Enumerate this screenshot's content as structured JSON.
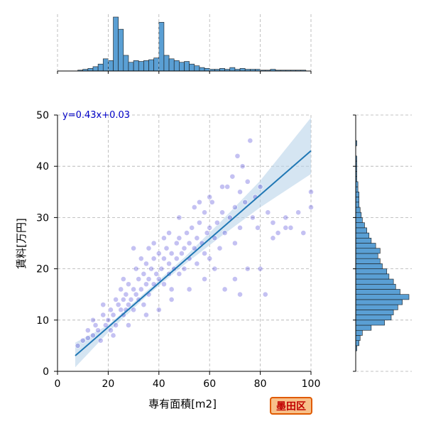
{
  "chart_data": {
    "type": "scatter",
    "xlabel": "専有面積[m2]",
    "ylabel": "賃料[万円]",
    "xlim": [
      0,
      100
    ],
    "ylim": [
      0,
      50
    ],
    "x_ticks": [
      "0",
      "20",
      "40",
      "60",
      "80",
      "100"
    ],
    "y_ticks": [
      "0",
      "10",
      "20",
      "30",
      "40",
      "50"
    ],
    "grid": true,
    "regression": {
      "label": "y=0.43x+0.03",
      "slope": 0.43,
      "intercept": 0.03,
      "x_range": [
        7,
        100
      ]
    },
    "confidence_band": [
      [
        7,
        0.8,
        5.6
      ],
      [
        20,
        7.6,
        9.0
      ],
      [
        35,
        14.6,
        15.6
      ],
      [
        50,
        20.8,
        22.2
      ],
      [
        65,
        26.5,
        29.5
      ],
      [
        80,
        32.0,
        37.2
      ],
      [
        100,
        38.5,
        49.5
      ]
    ],
    "scatter_points": [
      [
        8,
        5
      ],
      [
        10,
        6
      ],
      [
        12,
        6.5
      ],
      [
        12,
        8
      ],
      [
        14,
        7
      ],
      [
        15,
        9
      ],
      [
        16,
        8
      ],
      [
        17,
        6
      ],
      [
        18,
        11
      ],
      [
        19,
        9
      ],
      [
        20,
        10
      ],
      [
        21,
        8
      ],
      [
        21,
        12
      ],
      [
        22,
        11
      ],
      [
        23,
        14
      ],
      [
        23,
        9
      ],
      [
        24,
        13
      ],
      [
        25,
        12
      ],
      [
        25,
        16
      ],
      [
        26,
        11
      ],
      [
        26,
        14
      ],
      [
        27,
        15
      ],
      [
        27,
        12
      ],
      [
        28,
        13
      ],
      [
        28,
        17
      ],
      [
        29,
        14
      ],
      [
        30,
        16
      ],
      [
        30,
        12
      ],
      [
        31,
        15
      ],
      [
        32,
        18
      ],
      [
        32,
        14
      ],
      [
        33,
        16
      ],
      [
        34,
        19
      ],
      [
        34,
        13
      ],
      [
        35,
        17
      ],
      [
        35,
        21
      ],
      [
        36,
        15
      ],
      [
        36,
        18
      ],
      [
        37,
        20
      ],
      [
        38,
        17
      ],
      [
        38,
        22
      ],
      [
        39,
        19
      ],
      [
        40,
        18
      ],
      [
        40,
        23
      ],
      [
        41,
        20
      ],
      [
        42,
        17
      ],
      [
        42,
        22
      ],
      [
        43,
        24
      ],
      [
        44,
        19
      ],
      [
        44,
        21
      ],
      [
        45,
        23
      ],
      [
        45,
        16
      ],
      [
        46,
        20
      ],
      [
        47,
        25
      ],
      [
        47,
        22
      ],
      [
        48,
        19
      ],
      [
        48,
        26
      ],
      [
        49,
        23
      ],
      [
        50,
        24
      ],
      [
        50,
        20
      ],
      [
        51,
        27
      ],
      [
        52,
        22
      ],
      [
        52,
        25
      ],
      [
        53,
        28
      ],
      [
        54,
        24
      ],
      [
        55,
        26
      ],
      [
        55,
        21
      ],
      [
        56,
        29
      ],
      [
        57,
        25
      ],
      [
        58,
        31
      ],
      [
        58,
        23
      ],
      [
        59,
        27
      ],
      [
        60,
        28
      ],
      [
        60,
        22
      ],
      [
        61,
        33
      ],
      [
        62,
        26
      ],
      [
        63,
        29
      ],
      [
        64,
        24
      ],
      [
        65,
        31
      ],
      [
        66,
        27
      ],
      [
        67,
        36
      ],
      [
        68,
        30
      ],
      [
        69,
        38
      ],
      [
        70,
        25
      ],
      [
        70,
        32
      ],
      [
        71,
        42
      ],
      [
        72,
        35
      ],
      [
        72,
        28
      ],
      [
        73,
        40
      ],
      [
        74,
        33
      ],
      [
        75,
        37
      ],
      [
        75,
        20
      ],
      [
        76,
        45
      ],
      [
        77,
        30
      ],
      [
        78,
        34
      ],
      [
        79,
        28
      ],
      [
        80,
        36
      ],
      [
        82,
        15
      ],
      [
        83,
        31
      ],
      [
        85,
        29
      ],
      [
        87,
        27
      ],
      [
        90,
        30
      ],
      [
        92,
        28
      ],
      [
        95,
        31
      ],
      [
        97,
        27
      ],
      [
        100,
        35
      ],
      [
        100,
        32
      ],
      [
        30,
        24
      ],
      [
        22,
        7
      ],
      [
        28,
        9
      ],
      [
        35,
        11
      ],
      [
        40,
        12
      ],
      [
        45,
        14
      ],
      [
        52,
        16
      ],
      [
        58,
        18
      ],
      [
        62,
        20
      ],
      [
        36,
        24
      ],
      [
        44,
        27
      ],
      [
        26,
        18
      ],
      [
        18,
        13
      ],
      [
        14,
        10
      ],
      [
        33,
        22
      ],
      [
        48,
        30
      ],
      [
        54,
        32
      ],
      [
        65,
        36
      ],
      [
        70,
        18
      ],
      [
        66,
        16
      ],
      [
        72,
        15
      ],
      [
        80,
        20
      ],
      [
        85,
        26
      ],
      [
        90,
        28
      ],
      [
        60,
        34
      ],
      [
        56,
        33
      ],
      [
        42,
        26
      ],
      [
        38,
        25
      ],
      [
        31,
        20
      ]
    ],
    "x_histogram": {
      "bin_start": 8,
      "bin_width": 2,
      "counts": [
        1,
        2,
        3,
        5,
        8,
        14,
        12,
        62,
        48,
        18,
        10,
        12,
        11,
        12,
        13,
        15,
        56,
        18,
        14,
        12,
        10,
        11,
        8,
        6,
        4,
        3,
        2,
        2,
        3,
        2,
        4,
        2,
        3,
        2,
        2,
        2,
        1,
        1,
        2,
        1,
        1,
        1,
        1,
        1,
        1,
        0
      ]
    },
    "y_histogram": {
      "bin_start": 4,
      "bin_width": 1,
      "counts": [
        1,
        3,
        4,
        6,
        14,
        26,
        32,
        34,
        38,
        42,
        48,
        40,
        36,
        34,
        30,
        28,
        24,
        22,
        20,
        22,
        18,
        14,
        12,
        10,
        8,
        6,
        5,
        4,
        3,
        3,
        3,
        2,
        2,
        1,
        1,
        1,
        1,
        1,
        0,
        0,
        1,
        0,
        0
      ]
    }
  },
  "badge": {
    "label": "墨田区"
  },
  "colors": {
    "scatter": "#2b1fd1",
    "line": "#1f77b4",
    "band": "#b9d3ea",
    "hist": "#5a9fd4",
    "badge_bg": "#f7c08a",
    "badge_border": "#e05a00",
    "badge_text": "#c00000",
    "eq_text": "#0000c8"
  }
}
